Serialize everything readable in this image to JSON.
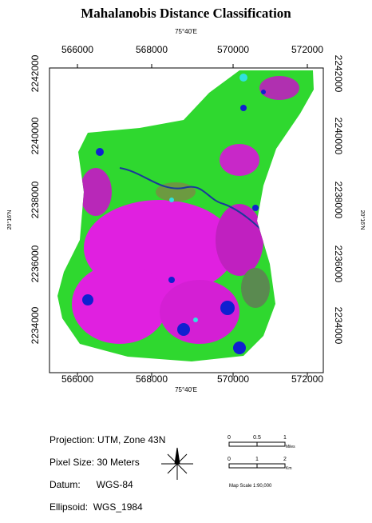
{
  "title": "Mahalanobis Distance Classification",
  "map": {
    "lon_label_top": "75°40'E",
    "lon_label_bottom": "75°40'E",
    "lat_label_left": "20°16'N",
    "lat_label_right": "20°16'N",
    "top_labels": [
      "566000",
      "568000",
      "570000",
      "572000"
    ],
    "bottom_labels": [
      "566000",
      "568000",
      "570000",
      "572000"
    ],
    "left_labels": [
      "2242000",
      "2240000",
      "2238000",
      "2236000",
      "2234000"
    ],
    "right_labels": [
      "2242000",
      "2240000",
      "2238000",
      "2236000",
      "2234000"
    ]
  },
  "info": [
    "Projection: UTM, Zone 43N",
    "Pixel Size: 30 Meters",
    "Datum:      WGS-84",
    "Ellipsoid:  WGS_1984"
  ],
  "scale": {
    "miles_ticks": [
      "0",
      "0.5",
      "1"
    ],
    "miles_unit": "Miles",
    "km_ticks": [
      "0",
      "1",
      "2"
    ],
    "km_unit": "Km",
    "ratio": "Map Scale 1:90,000"
  }
}
